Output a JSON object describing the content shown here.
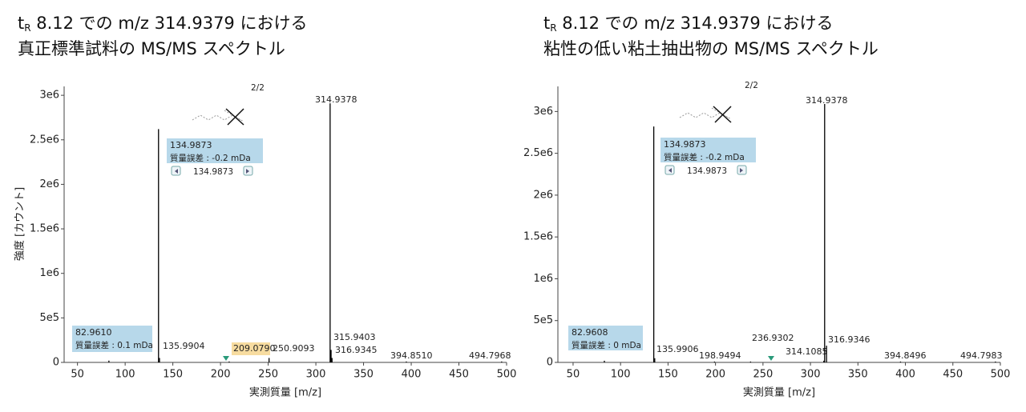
{
  "chart_data": [
    {
      "type": "stem",
      "title_prefix": "t",
      "title_subscript": "R",
      "title_rest": " 8.12 での m/z 314.9379 における",
      "title_line2": "真正標準試料の MS/MS スペクトル",
      "x_label": "実測質量 [m/z]",
      "y_label": "強度 [カウント]",
      "page_indicator": "2/2",
      "x": [
        82.961,
        134.9873,
        135.9904,
        209.079,
        250.9093,
        314.9378,
        315.9403,
        316.9345,
        394.851,
        494.7968
      ],
      "x_labels": [
        "82.9610",
        "134.9873",
        "135.9904",
        "209.0790",
        "250.9093",
        "314.9378",
        "315.9403",
        "316.9345",
        "394.8510",
        "494.7968"
      ],
      "values": [
        20000,
        2620000,
        50000,
        10000,
        50000,
        2910000,
        140000,
        50000,
        10000,
        10000
      ],
      "color": "#000000",
      "callouts": [
        {
          "note": "質量誤差 : 0.1 mDa"
        },
        {
          "note": "質量誤差 : -0.2 mDa"
        }
      ],
      "xlim": [
        36,
        500
      ],
      "xticks": [
        50,
        100,
        150,
        200,
        250,
        300,
        350,
        400,
        450,
        500
      ],
      "ylim": [
        0,
        3100000
      ],
      "yticks": [
        0,
        {
          "value": 500000,
          "label": "5e5"
        },
        {
          "value": 1000000,
          "label": "1e6"
        },
        {
          "value": 1500000,
          "label": "1.5e6"
        },
        {
          "value": 2000000,
          "label": "2e6"
        },
        {
          "value": 2500000,
          "label": "2.5e6"
        },
        {
          "value": 3000000,
          "label": "3e6"
        }
      ]
    },
    {
      "type": "stem",
      "title_prefix": "t",
      "title_subscript": "R",
      "title_rest": " 8.12 での m/z 314.9379 における",
      "title_line2": "粘性の低い粘土抽出物の MS/MS スペクトル",
      "x_label": "実測質量 [m/z]",
      "page_indicator": "2/2",
      "x": [
        82.9608,
        134.9873,
        135.9906,
        198.9494,
        236.9302,
        314.1085,
        314.9378,
        316.9346,
        394.8496,
        494.7983
      ],
      "x_labels": [
        "82.9608",
        "134.9873",
        "135.9906",
        "198.9494",
        "236.9302",
        "314.1085",
        "314.9378",
        "316.9346",
        "394.8496",
        "494.7983"
      ],
      "values": [
        20000,
        2820000,
        50000,
        10000,
        10000,
        20000,
        3090000,
        200000,
        10000,
        10000
      ],
      "color": "#000000",
      "callouts": [
        {
          "note": "質量誤差 : 0 mDa"
        },
        {
          "note": "質量誤差 : -0.2 mDa"
        }
      ],
      "xlim": [
        34,
        500
      ],
      "xticks": [
        50,
        100,
        150,
        200,
        250,
        300,
        350,
        400,
        450,
        500
      ],
      "ylim": [
        0,
        3300000
      ],
      "yticks": [
        0,
        {
          "value": 500000,
          "label": "5e5"
        },
        {
          "value": 1000000,
          "label": "1e6"
        },
        {
          "value": 1500000,
          "label": "1.5e6"
        },
        {
          "value": 2000000,
          "label": "2e6"
        },
        {
          "value": 2500000,
          "label": "2.5e6"
        },
        {
          "value": 3000000,
          "label": "3e6"
        }
      ]
    }
  ]
}
